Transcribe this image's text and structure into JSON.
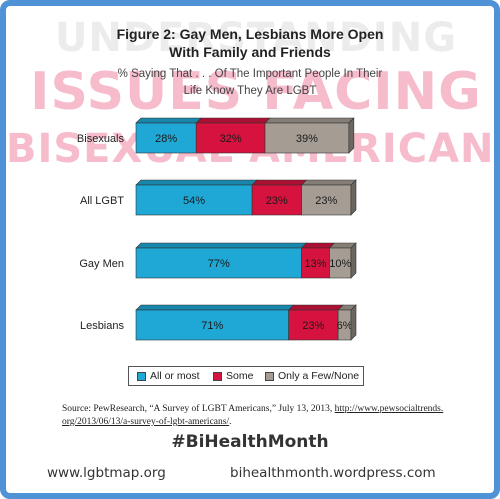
{
  "background_title": {
    "line1": "UNDERSTANDING",
    "line2": "ISSUES FACING",
    "line3": "BISEXUAL AMERICANS"
  },
  "chart_data": {
    "type": "bar",
    "stacked": true,
    "orientation": "horizontal",
    "title_line1": "Figure 2: Gay Men, Lesbians More Open",
    "title_line2": "With Family and Friends",
    "subtitle_line1": "% Saying That . . .  Of The Important People In Their",
    "subtitle_line2": "Life Know They Are LGBT",
    "categories": [
      "Bisexuals",
      "All LGBT",
      "Gay Men",
      "Lesbians"
    ],
    "series": [
      {
        "name": "All or most",
        "values": [
          28,
          54,
          77,
          71
        ],
        "labels": [
          "28%",
          "54%",
          "77%",
          "71%"
        ],
        "color": "#1fa8d6"
      },
      {
        "name": "Some",
        "values": [
          32,
          23,
          13,
          23
        ],
        "labels": [
          "32%",
          "23%",
          "13%",
          "23%"
        ],
        "color": "#d6133e"
      },
      {
        "name": "Only a Few/None",
        "values": [
          39,
          23,
          10,
          6
        ],
        "labels": [
          "39%",
          "23%",
          "10%",
          "6%"
        ],
        "color": "#a59d94"
      }
    ],
    "xlim": [
      0,
      100
    ],
    "legend_position": "bottom"
  },
  "source": {
    "prefix": "Source: PewResearch, “A Survey of LGBT Americans,” July 13, 2013, ",
    "url_part1": "http://www.pewsocialtrends.",
    "url_part2": "org/2013/06/13/a-survey-of-lgbt-americans/",
    "suffix": "."
  },
  "hashtag": "#BiHealthMonth",
  "footer": {
    "left": "www.lgbtmap.org",
    "right": "bihealthmonth.wordpress.com"
  },
  "colors": {
    "frame": "#4f92d6",
    "all_or_most": "#1fa8d6",
    "some": "#d6133e",
    "few_none": "#a59d94"
  }
}
